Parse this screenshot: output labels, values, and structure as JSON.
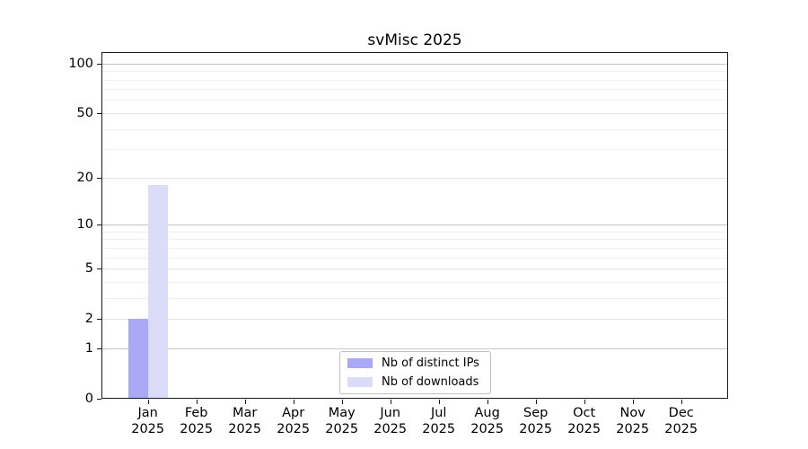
{
  "chart_data": {
    "type": "bar",
    "title": "svMisc 2025",
    "scale": "log1p",
    "grid": true,
    "legend_position": "lower center",
    "categories": [
      "Jan",
      "Feb",
      "Mar",
      "Apr",
      "May",
      "Jun",
      "Jul",
      "Aug",
      "Sep",
      "Oct",
      "Nov",
      "Dec"
    ],
    "x_sub_label": "2025",
    "series": [
      {
        "name": "Nb of distinct IPs",
        "color": "#a9a9f6",
        "values": [
          2,
          0,
          0,
          0,
          0,
          0,
          0,
          0,
          0,
          0,
          0,
          0
        ]
      },
      {
        "name": "Nb of downloads",
        "color": "#dbdbfa",
        "values": [
          18,
          0,
          0,
          0,
          0,
          0,
          0,
          0,
          0,
          0,
          0,
          0
        ]
      }
    ],
    "y_ticks": [
      0,
      1,
      2,
      5,
      10,
      20,
      50,
      100
    ],
    "y_decade_gridlines": [
      1,
      10,
      100
    ],
    "y_mid_gridlines": [
      2,
      5,
      20,
      50
    ],
    "y_minor_gridlines": [
      3,
      4,
      6,
      7,
      8,
      9,
      30,
      40,
      60,
      70,
      80,
      90
    ],
    "ylim": [
      0,
      117
    ],
    "colors": {
      "decade_grid": "#c6c6c6",
      "mid_grid": "#e4e4e4",
      "minor_grid": "#f1f1f1",
      "axis": "#1a1a1a",
      "legend_border": "#bfbfbf",
      "text": "#000000",
      "background": "#ffffff"
    }
  }
}
